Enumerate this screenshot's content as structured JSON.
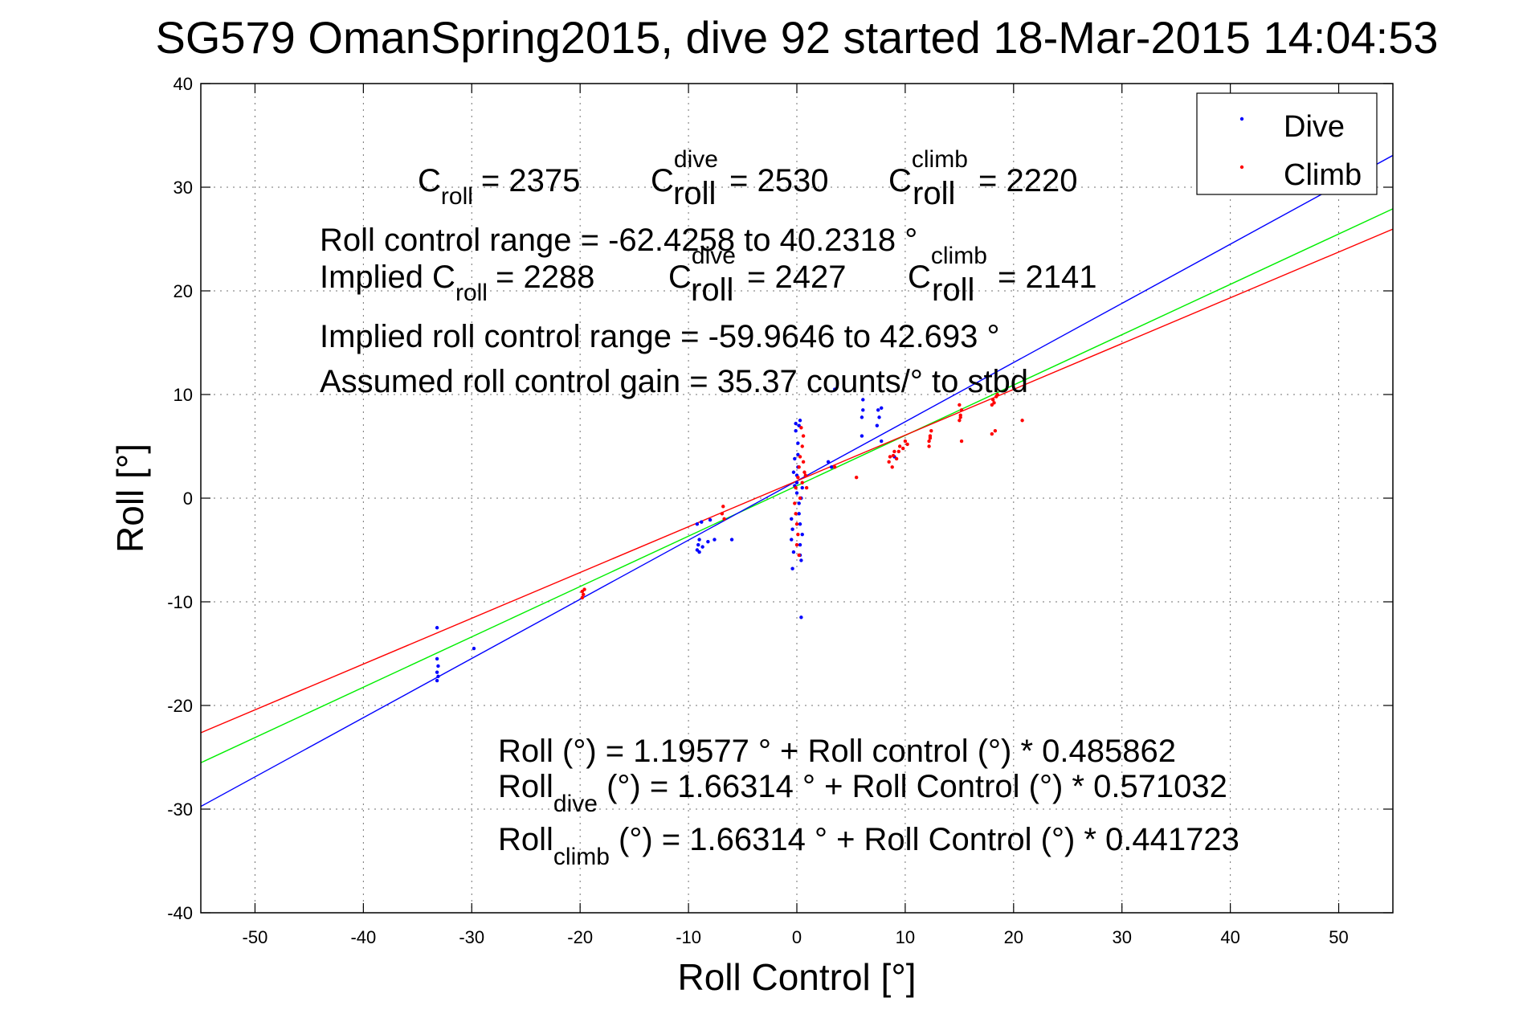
{
  "chart_data": {
    "type": "scatter",
    "title": "SG579 OmanSpring2015, dive 92 started 18-Mar-2015 14:04:53",
    "xlabel": "Roll Control [°]",
    "ylabel": "Roll [°]",
    "xlim": [
      -55,
      55
    ],
    "ylim": [
      -40,
      40
    ],
    "xticks": [
      -50,
      -40,
      -30,
      -20,
      -10,
      0,
      10,
      20,
      30,
      40,
      50
    ],
    "yticks": [
      -40,
      -30,
      -20,
      -10,
      0,
      10,
      20,
      30,
      40
    ],
    "xtick_labels": [
      "-50",
      "-40",
      "-30",
      "-20",
      "-10",
      "0",
      "10",
      "20",
      "30",
      "40",
      "50"
    ],
    "ytick_labels": [
      "-40",
      "-30",
      "-20",
      "-10",
      "0",
      "10",
      "20",
      "30",
      "40"
    ],
    "grid": true,
    "legend": {
      "position": "top-right",
      "entries": [
        "Dive",
        "Climb"
      ]
    },
    "colors": {
      "dive": "#0000ff",
      "climb": "#ff0000",
      "fit": "#00ee00"
    },
    "series": [
      {
        "name": "Dive",
        "color": "#0000ff",
        "points": [
          [
            -33.2,
            -12.5
          ],
          [
            -33.2,
            -15.5
          ],
          [
            -33.1,
            -16.2
          ],
          [
            -33.2,
            -16.8
          ],
          [
            -33.1,
            -17.2
          ],
          [
            -33.2,
            -17.6
          ],
          [
            -29.8,
            -14.5
          ],
          [
            -9.2,
            -2.5
          ],
          [
            -9.0,
            -4.0
          ],
          [
            -9.1,
            -4.5
          ],
          [
            -9.2,
            -5.0
          ],
          [
            -9.0,
            -5.2
          ],
          [
            -8.8,
            -2.3
          ],
          [
            -8.7,
            -4.7
          ],
          [
            -8.2,
            -4.2
          ],
          [
            -8.0,
            -2.1
          ],
          [
            -7.6,
            -4.0
          ],
          [
            -6.0,
            -4.0
          ],
          [
            -0.5,
            -2.0
          ],
          [
            -0.4,
            -3.0
          ],
          [
            -0.5,
            -4.0
          ],
          [
            -0.3,
            -5.2
          ],
          [
            -0.4,
            -6.8
          ],
          [
            -0.2,
            1.2
          ],
          [
            -0.3,
            2.5
          ],
          [
            -0.2,
            3.8
          ],
          [
            -0.1,
            6.5
          ],
          [
            -0.1,
            7.2
          ],
          [
            0.0,
            0.5
          ],
          [
            0.0,
            1.5
          ],
          [
            0.0,
            2.2
          ],
          [
            0.1,
            3.0
          ],
          [
            0.1,
            4.2
          ],
          [
            0.1,
            5.3
          ],
          [
            0.2,
            -0.5
          ],
          [
            0.2,
            -1.5
          ],
          [
            0.3,
            -2.5
          ],
          [
            0.3,
            -4.5
          ],
          [
            0.3,
            -5.5
          ],
          [
            0.4,
            -6.0
          ],
          [
            0.4,
            -11.5
          ],
          [
            0.2,
            7.0
          ],
          [
            0.3,
            7.5
          ],
          [
            0.4,
            0.0
          ],
          [
            0.5,
            -3.5
          ],
          [
            0.5,
            1.0
          ],
          [
            6.0,
            7.8
          ],
          [
            6.1,
            8.5
          ],
          [
            6.1,
            9.5
          ],
          [
            6.0,
            6.0
          ],
          [
            7.5,
            8.5
          ],
          [
            7.6,
            7.8
          ],
          [
            7.4,
            7.0
          ],
          [
            7.8,
            5.5
          ],
          [
            7.8,
            8.7
          ],
          [
            2.9,
            3.5
          ],
          [
            3.2,
            3.0
          ],
          [
            3.5,
            10.5
          ],
          [
            9.0,
            4.0
          ]
        ]
      },
      {
        "name": "Climb",
        "color": "#ff0000",
        "points": [
          [
            -19.8,
            -9.0
          ],
          [
            -19.7,
            -9.3
          ],
          [
            -19.8,
            -9.6
          ],
          [
            -19.6,
            -8.8
          ],
          [
            -6.8,
            -0.8
          ],
          [
            -6.9,
            -1.5
          ],
          [
            -6.7,
            -2.0
          ],
          [
            -0.2,
            -0.5
          ],
          [
            -0.1,
            -1.5
          ],
          [
            0.0,
            -2.5
          ],
          [
            0.1,
            -3.5
          ],
          [
            0.0,
            -4.5
          ],
          [
            0.2,
            -5.5
          ],
          [
            -0.1,
            1.0
          ],
          [
            0.1,
            2.0
          ],
          [
            0.2,
            3.0
          ],
          [
            0.3,
            4.0
          ],
          [
            0.5,
            5.0
          ],
          [
            0.6,
            6.0
          ],
          [
            0.4,
            6.8
          ],
          [
            0.6,
            3.5
          ],
          [
            0.7,
            2.5
          ],
          [
            0.8,
            2.2
          ],
          [
            0.5,
            1.5
          ],
          [
            0.3,
            0.0
          ],
          [
            0.9,
            1.0
          ],
          [
            3.5,
            3.0
          ],
          [
            5.5,
            2.0
          ],
          [
            8.5,
            3.5
          ],
          [
            8.6,
            4.0
          ],
          [
            8.8,
            3.0
          ],
          [
            9.0,
            4.5
          ],
          [
            9.2,
            3.8
          ],
          [
            9.4,
            4.5
          ],
          [
            9.5,
            5.0
          ],
          [
            9.8,
            4.8
          ],
          [
            10.0,
            5.5
          ],
          [
            10.2,
            5.2
          ],
          [
            8.9,
            4.1
          ],
          [
            12.2,
            5.5
          ],
          [
            12.3,
            6.0
          ],
          [
            12.4,
            6.5
          ],
          [
            12.2,
            5.0
          ],
          [
            12.3,
            5.8
          ],
          [
            15.0,
            7.5
          ],
          [
            15.1,
            8.0
          ],
          [
            15.2,
            8.5
          ],
          [
            15.0,
            9.0
          ],
          [
            15.1,
            7.8
          ],
          [
            15.2,
            5.5
          ],
          [
            18.0,
            9.0
          ],
          [
            18.1,
            9.5
          ],
          [
            18.2,
            9.2
          ],
          [
            18.5,
            10.0
          ],
          [
            18.0,
            6.2
          ],
          [
            18.3,
            6.5
          ],
          [
            18.4,
            9.8
          ],
          [
            20.8,
            7.5
          ]
        ]
      }
    ],
    "fit_lines": [
      {
        "name": "Roll",
        "color": "#00ee00",
        "intercept": 1.19577,
        "slope": 0.485862
      },
      {
        "name": "Roll dive",
        "color": "#0000ff",
        "intercept": 1.66314,
        "slope": 0.571032
      },
      {
        "name": "Roll climb",
        "color": "#ff0000",
        "intercept": 1.66314,
        "slope": 0.441723
      }
    ],
    "annotations": {
      "c_roll": "C",
      "c_roll_sub": "roll",
      "c_roll_val": "= 2375",
      "c_dive": "C",
      "c_dive_sup": "dive",
      "c_dive_sub": "roll",
      "c_dive_val": "= 2530",
      "c_climb": "C",
      "c_climb_sup": "climb",
      "c_climb_sub": "roll",
      "c_climb_val": "= 2220",
      "range": "Roll control range = -62.4258 to 40.2318 °",
      "implied_prefix": "Implied C",
      "implied_sub": "roll",
      "implied_val": "= 2288",
      "imp_dive": "C",
      "imp_dive_sup": "dive",
      "imp_dive_sub": "roll",
      "imp_dive_val": "= 2427",
      "imp_climb": "C",
      "imp_climb_sup": "climb",
      "imp_climb_sub": "roll",
      "imp_climb_val": "= 2141",
      "implied_range": "Implied roll control range = -59.9646 to 42.693 °",
      "gain": "Assumed roll control gain = 35.37 counts/° to stbd",
      "eq1": "Roll (°) = 1.19577 ° + Roll control (°) * 0.485862",
      "eq2_base": "Roll",
      "eq2_sub": "dive",
      "eq2_rest": " (°) = 1.66314 ° + Roll Control (°) * 0.571032",
      "eq3_base": "Roll",
      "eq3_sub": "climb",
      "eq3_rest": " (°) = 1.66314 ° + Roll Control (°) * 0.441723"
    }
  }
}
